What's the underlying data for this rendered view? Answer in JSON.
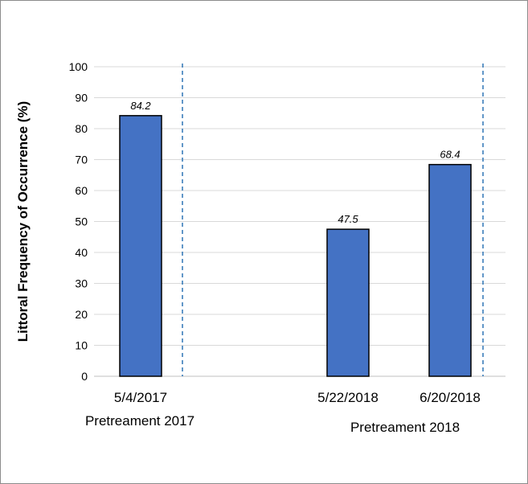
{
  "chart_data": {
    "type": "bar",
    "categories": [
      "5/4/2017",
      "5/22/2018",
      "6/20/2018"
    ],
    "values": [
      84.2,
      47.5,
      68.4
    ],
    "data_labels": [
      "84.2",
      "47.5",
      "68.4"
    ],
    "title": "",
    "xlabel": "",
    "ylabel": "Littoral Frequency of Occurrence (%)",
    "ylim": [
      0,
      100
    ],
    "yticks": [
      0,
      10,
      20,
      30,
      40,
      50,
      60,
      70,
      80,
      90,
      100
    ],
    "grid": true,
    "groups": [
      {
        "label": "Pretreament 2017",
        "categories": [
          "5/4/2017"
        ]
      },
      {
        "label": "Pretreament 2018",
        "categories": [
          "5/22/2018",
          "6/20/2018"
        ]
      }
    ],
    "colors": {
      "bar_fill": "#4472C4",
      "bar_stroke": "#000000",
      "gridline": "#d9d9d9",
      "separator": "#2E75B6"
    }
  }
}
